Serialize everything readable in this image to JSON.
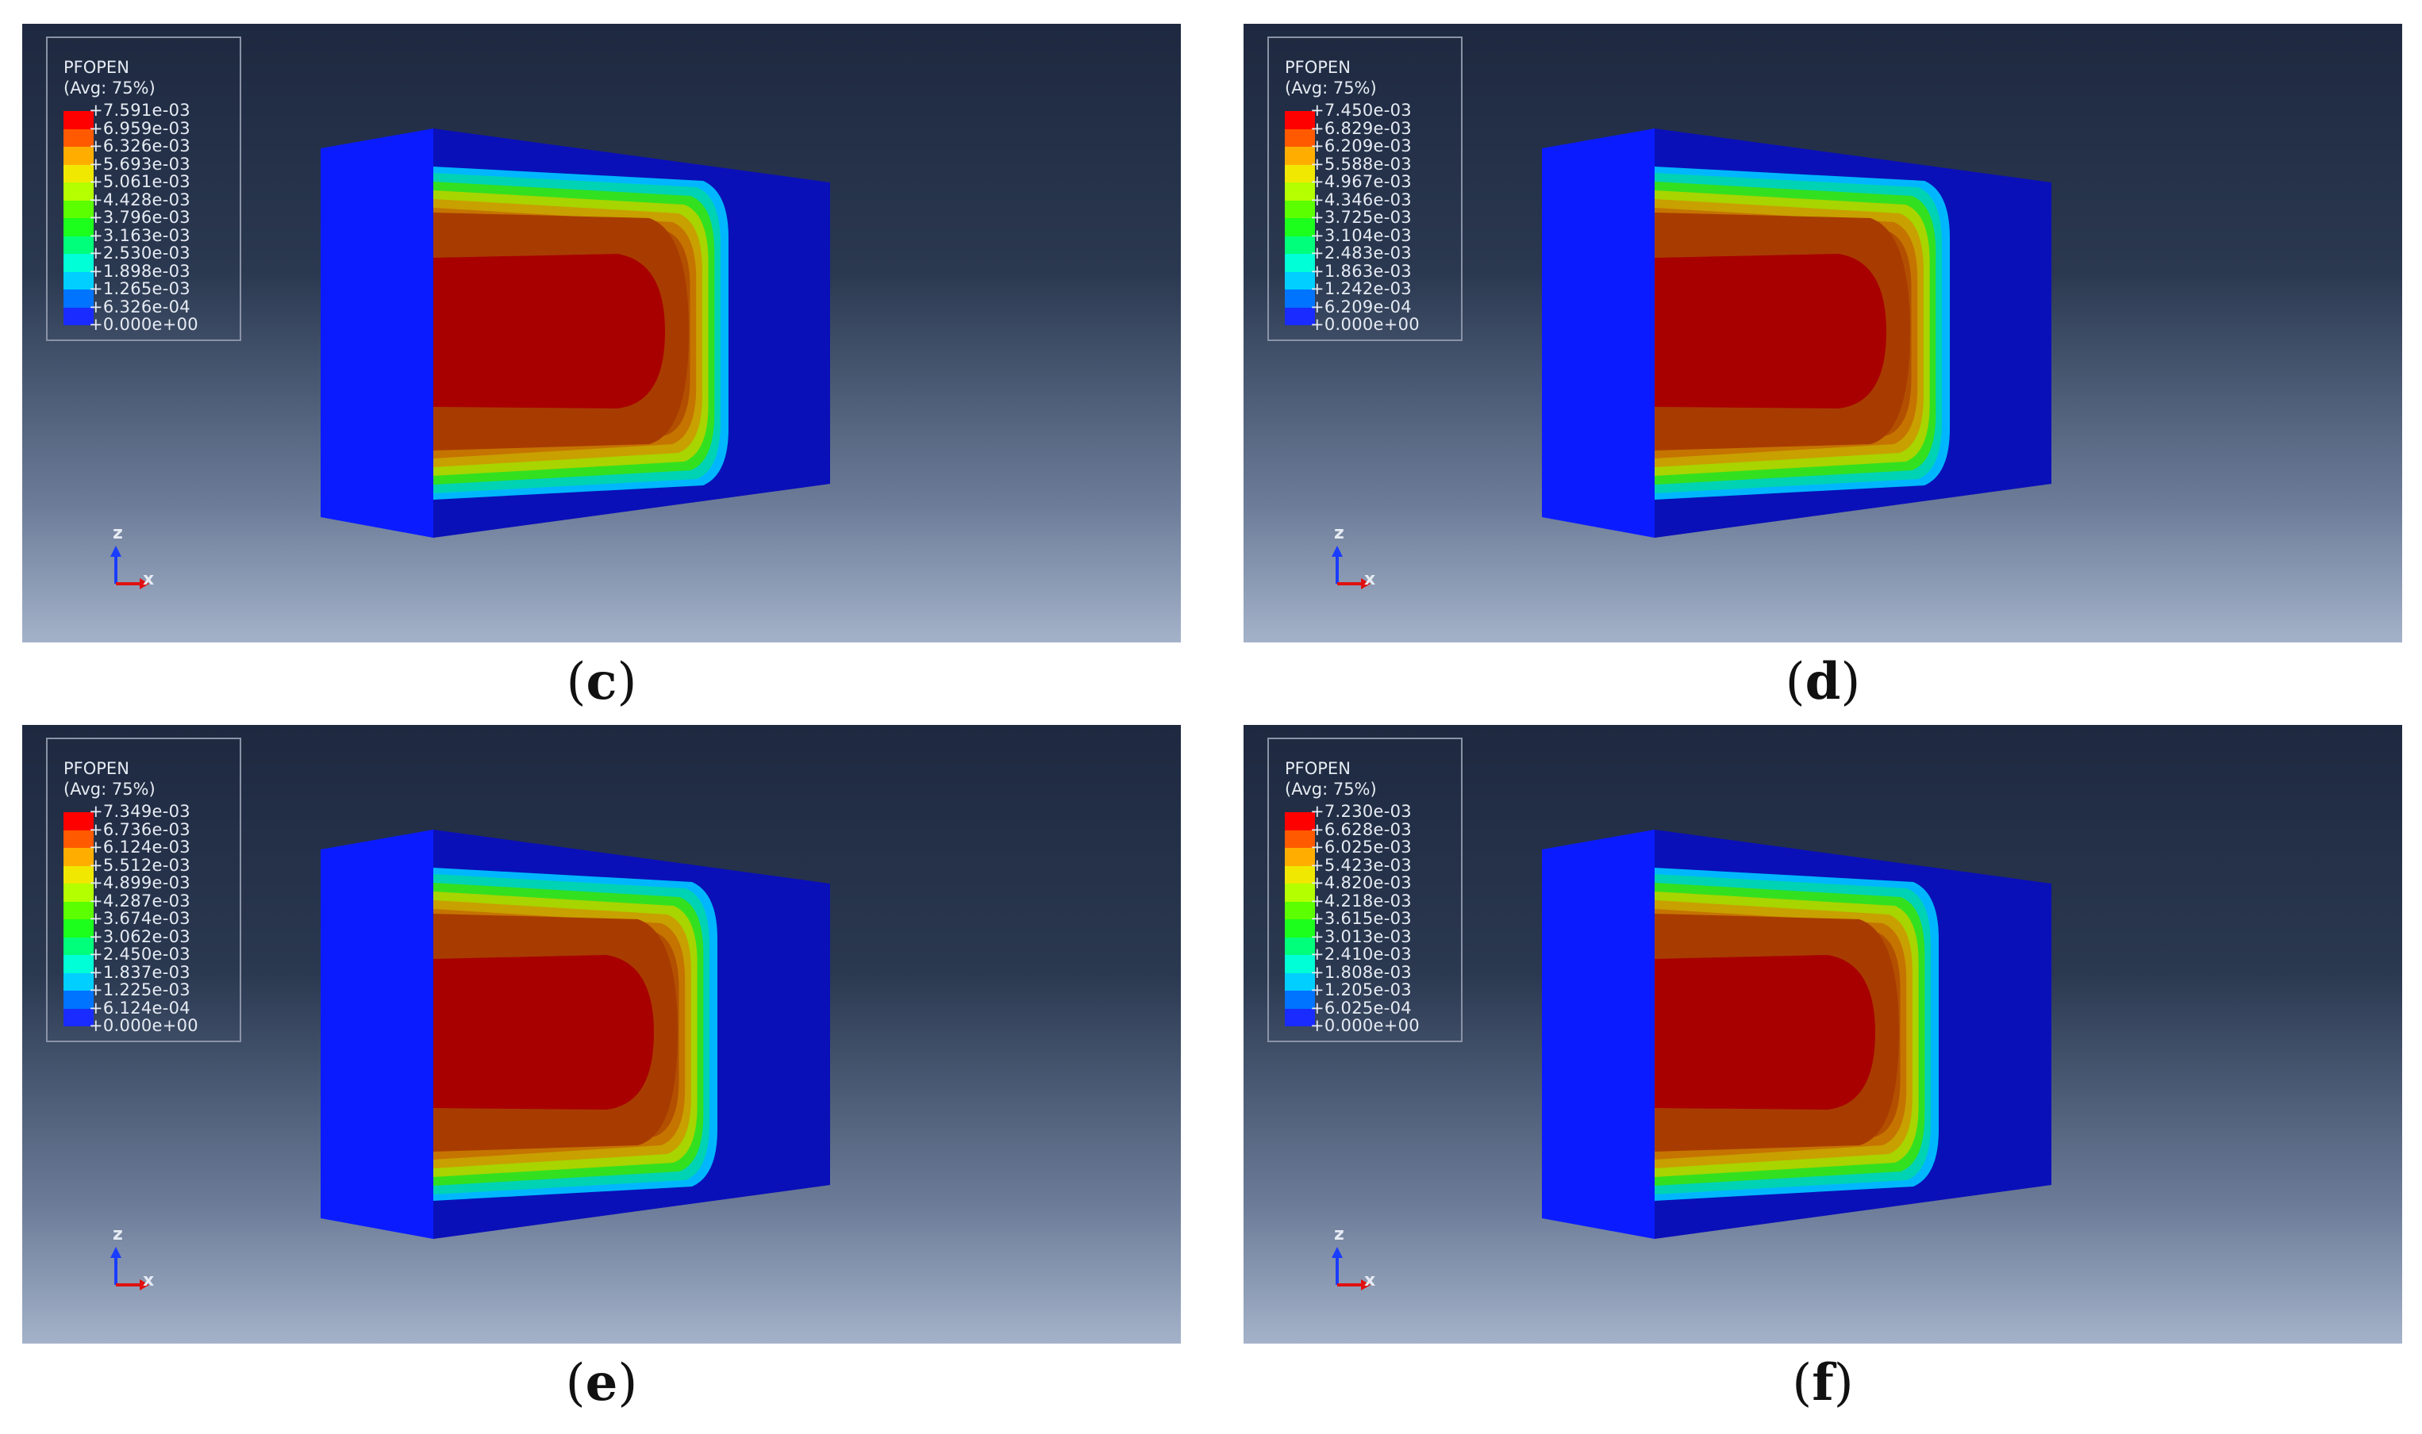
{
  "legend_colors": [
    "#ff0000",
    "#ff5a00",
    "#ffae00",
    "#f0e800",
    "#b4ff00",
    "#5cff00",
    "#1cff1c",
    "#00ff7a",
    "#00ffd6",
    "#00cfff",
    "#0073ff",
    "#1a2bff"
  ],
  "panels": [
    {
      "id": "c",
      "caption": "c",
      "legend_title": "PFOPEN",
      "legend_subtitle": "(Avg: 75%)",
      "legend_values": [
        "+7.591e-03",
        "+6.959e-03",
        "+6.326e-03",
        "+5.693e-03",
        "+5.061e-03",
        "+4.428e-03",
        "+3.796e-03",
        "+3.163e-03",
        "+2.530e-03",
        "+1.898e-03",
        "+1.265e-03",
        "+6.326e-04",
        "+0.000e+00"
      ],
      "axis_z": "z",
      "axis_x": "x"
    },
    {
      "id": "d",
      "caption": "d",
      "legend_title": "PFOPEN",
      "legend_subtitle": "(Avg: 75%)",
      "legend_values": [
        "+7.450e-03",
        "+6.829e-03",
        "+6.209e-03",
        "+5.588e-03",
        "+4.967e-03",
        "+4.346e-03",
        "+3.725e-03",
        "+3.104e-03",
        "+2.483e-03",
        "+1.863e-03",
        "+1.242e-03",
        "+6.209e-04",
        "+0.000e+00"
      ],
      "axis_z": "z",
      "axis_x": "x"
    },
    {
      "id": "e",
      "caption": "e",
      "legend_title": "PFOPEN",
      "legend_subtitle": "(Avg: 75%)",
      "legend_values": [
        "+7.349e-03",
        "+6.736e-03",
        "+6.124e-03",
        "+5.512e-03",
        "+4.899e-03",
        "+4.287e-03",
        "+3.674e-03",
        "+3.062e-03",
        "+2.450e-03",
        "+1.837e-03",
        "+1.225e-03",
        "+6.124e-04",
        "+0.000e+00"
      ],
      "axis_z": "z",
      "axis_x": "x"
    },
    {
      "id": "f",
      "caption": "f",
      "legend_title": "PFOPEN",
      "legend_subtitle": "(Avg: 75%)",
      "legend_values": [
        "+7.230e-03",
        "+6.628e-03",
        "+6.025e-03",
        "+5.423e-03",
        "+4.820e-03",
        "+4.218e-03",
        "+3.615e-03",
        "+3.013e-03",
        "+2.410e-03",
        "+1.808e-03",
        "+1.205e-03",
        "+6.025e-04",
        "+0.000e+00"
      ],
      "axis_z": "z",
      "axis_x": "x"
    }
  ]
}
